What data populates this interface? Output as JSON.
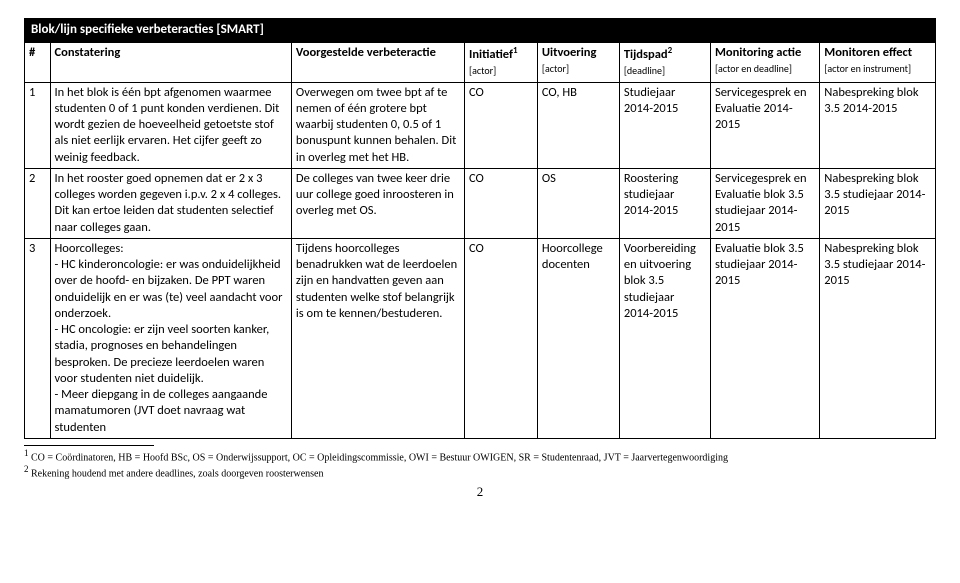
{
  "title": "Blok/lijn specifieke verbeteracties [SMART]",
  "headers": {
    "num": "#",
    "a": "Constatering",
    "b": "Voorgestelde verbeteractie",
    "c": "Initiatief",
    "c_sup": "1",
    "c_sub": "[actor]",
    "d": "Uitvoering",
    "d_sub": "[actor]",
    "e": "Tijdspad",
    "e_sup": "2",
    "e_sub": "[deadline]",
    "f": "Monitoring actie",
    "f_sub": "[actor en deadline]",
    "g": "Monitoren effect",
    "g_sub": "[actor en instrument]"
  },
  "rows": [
    {
      "num": "1",
      "a": "In het blok is één bpt afgenomen waarmee studenten 0 of 1 punt konden verdienen. Dit wordt gezien de hoeveelheid getoetste stof als niet eerlijk ervaren. Het cijfer geeft zo weinig feedback.",
      "b": "Overwegen om twee bpt af te nemen of één grotere bpt waarbij studenten 0, 0.5 of 1 bonuspunt kunnen behalen. Dit in overleg met het HB.",
      "c": "CO",
      "d": "CO, HB",
      "e": "Studiejaar 2014-2015",
      "f": "Servicegesprek en Evaluatie 2014-2015",
      "g": "Nabespreking blok 3.5 2014-2015"
    },
    {
      "num": "2",
      "a": "In het rooster goed opnemen dat er 2  x  3 colleges worden gegeven i.p.v. 2 x 4 colleges. Dit kan ertoe leiden dat studenten selectief naar colleges gaan.",
      "b": "De colleges van twee keer drie uur college goed inroosteren in overleg met OS.",
      "c": "CO",
      "d": "OS",
      "e": "Roostering studiejaar 2014-2015",
      "f": "Servicegesprek en Evaluatie blok 3.5 studiejaar 2014-2015",
      "g": "Nabespreking blok 3.5 studiejaar 2014-2015"
    },
    {
      "num": "3",
      "a": "Hoorcolleges:\n- HC kinderoncologie: er was onduidelijkheid over de hoofd- en bijzaken. De PPT waren onduidelijk en er was (te) veel aandacht voor onderzoek.\n- HC oncologie: er zijn veel soorten kanker, stadia, prognoses en behandelingen besproken. De precieze leerdoelen waren voor studenten niet duidelijk.\n- Meer diepgang in de colleges aangaande mamatumoren (JVT doet navraag wat studenten",
      "b": "Tijdens hoorcolleges benadrukken wat de leerdoelen zijn en handvatten geven aan studenten welke stof belangrijk is om te kennen/bestuderen.",
      "c": "CO",
      "d": "Hoorcollege docenten",
      "e": "Voorbereiding en uitvoering blok 3.5 studiejaar 2014-2015",
      "f": "Evaluatie blok 3.5 studiejaar 2014-2015",
      "g": "Nabespreking blok 3.5 studiejaar 2014-2015"
    }
  ],
  "footnotes": {
    "f1_sup": "1",
    "f1": " CO = Coördinatoren, HB = Hoofd BSc, OS = Onderwijssupport, OC = Opleidingscommissie, OWI = Bestuur OWIGEN, SR = Studentenraad, JVT = Jaarvertegenwoordiging",
    "f2_sup": "2",
    "f2": " Rekening houdend met andere deadlines, zoals doorgeven roosterwensen"
  },
  "pagenum": "2"
}
